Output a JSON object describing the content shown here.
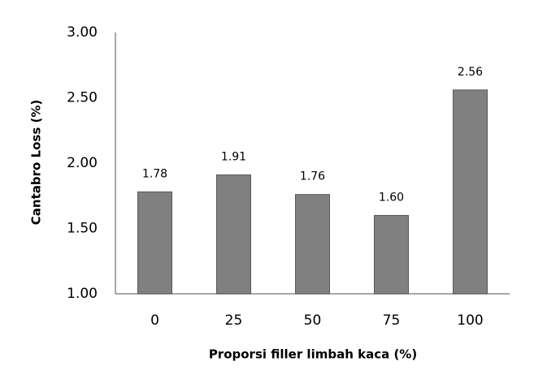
{
  "chart_data": {
    "type": "bar",
    "x_label": "Proporsi filler limbah kaca (%)",
    "y_label": "Cantabro Loss (%)",
    "categories": [
      "0",
      "25",
      "50",
      "75",
      "100"
    ],
    "values": [
      1.78,
      1.91,
      1.76,
      1.6,
      2.56
    ],
    "value_labels": [
      "1.78",
      "1.91",
      "1.76",
      "1.60",
      "2.56"
    ],
    "color": "#808080",
    "ylim": [
      1,
      3
    ],
    "yticks": [
      {
        "value": 1,
        "label": "1.00"
      },
      {
        "value": 1.5,
        "label": "1.50"
      },
      {
        "value": 2,
        "label": "2.00"
      },
      {
        "value": 2.5,
        "label": "2.50"
      },
      {
        "value": 3,
        "label": "3.00"
      }
    ],
    "grid": false
  }
}
